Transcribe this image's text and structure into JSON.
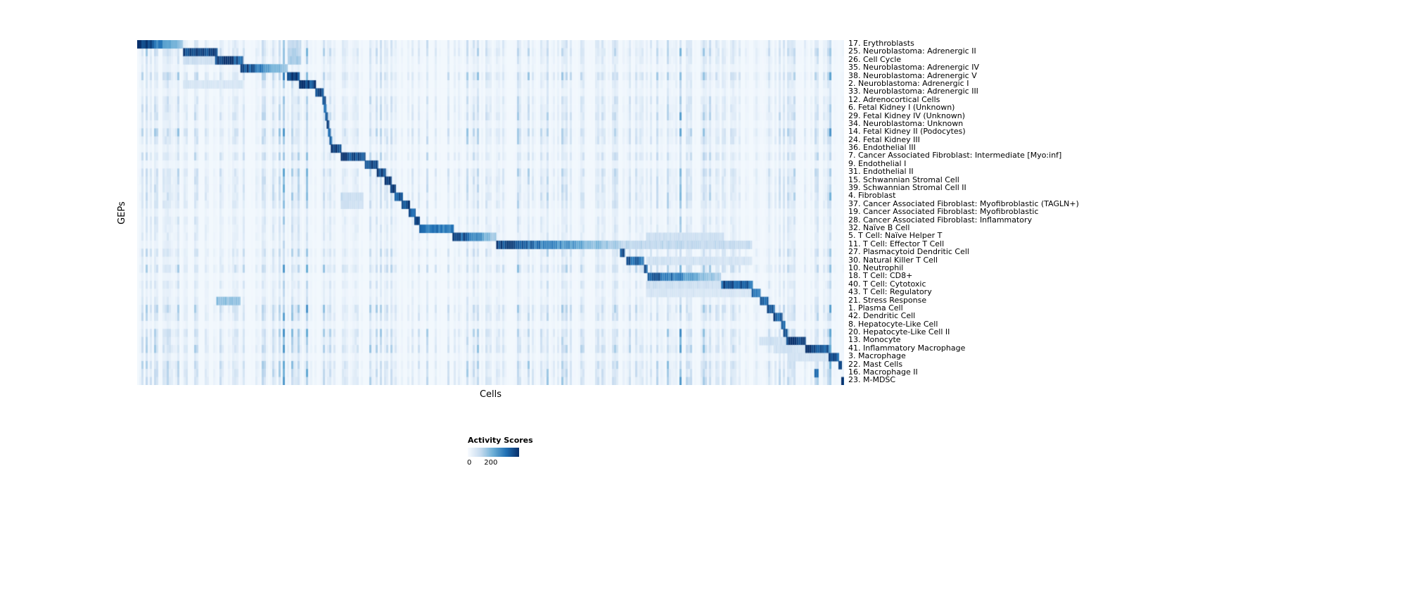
{
  "figure": {
    "background": "#ffffff"
  },
  "chart_data": {
    "type": "heatmap",
    "title": "",
    "xlabel": "Cells",
    "ylabel": "GEPs",
    "colormap": "Blues",
    "value_range": [
      0,
      200
    ],
    "colors": {
      "min": "#f7fbff",
      "max": "#08306b"
    },
    "colorbar": {
      "title": "Activity Scores",
      "ticks": [
        {
          "label": "0",
          "pos": 0.03
        },
        {
          "label": "200",
          "pos": 0.45
        }
      ]
    },
    "rows": [
      {
        "label": "17. Erythroblasts",
        "segments": [
          [
            0.0,
            0.065,
            210
          ],
          [
            0.213,
            0.232,
            55
          ]
        ]
      },
      {
        "label": "25. Neuroblastoma: Adrenergic II",
        "segments": [
          [
            0.065,
            0.114,
            200
          ],
          [
            0.213,
            0.232,
            60
          ]
        ]
      },
      {
        "label": "26. Cell Cycle",
        "segments": [
          [
            0.11,
            0.15,
            200
          ],
          [
            0.065,
            0.11,
            45
          ],
          [
            0.213,
            0.232,
            70
          ]
        ]
      },
      {
        "label": "35. Neuroblastoma: Adrenergic IV",
        "segments": [
          [
            0.146,
            0.213,
            195
          ]
        ]
      },
      {
        "label": "38. Neuroblastoma: Adrenergic V",
        "segments": [
          [
            0.212,
            0.23,
            210
          ]
        ]
      },
      {
        "label": "2. Neuroblastoma: Adrenergic I",
        "segments": [
          [
            0.229,
            0.253,
            200
          ],
          [
            0.065,
            0.15,
            35
          ]
        ]
      },
      {
        "label": "33. Neuroblastoma: Adrenergic III",
        "segments": [
          [
            0.252,
            0.264,
            200
          ]
        ]
      },
      {
        "label": "12. Adrenocortical Cells",
        "segments": [
          [
            0.262,
            0.267,
            190
          ]
        ]
      },
      {
        "label": "6. Fetal Kidney I (Unknown)",
        "segments": [
          [
            0.264,
            0.268,
            180
          ]
        ]
      },
      {
        "label": "29. Fetal Kidney IV (Unknown)",
        "segments": [
          [
            0.266,
            0.27,
            180
          ]
        ]
      },
      {
        "label": "34. Neuroblastoma: Unknown",
        "segments": [
          [
            0.268,
            0.272,
            170
          ]
        ]
      },
      {
        "label": "14. Fetal Kidney II (Podocytes)",
        "segments": [
          [
            0.27,
            0.274,
            180
          ]
        ]
      },
      {
        "label": "24. Fetal Kidney III",
        "segments": [
          [
            0.272,
            0.276,
            180
          ]
        ]
      },
      {
        "label": "36. Endothelial III",
        "segments": [
          [
            0.274,
            0.289,
            195
          ]
        ]
      },
      {
        "label": "7. Cancer Associated Fibroblast: Intermediate [Myo:inf]",
        "segments": [
          [
            0.288,
            0.323,
            200
          ]
        ]
      },
      {
        "label": "9. Endothelial I",
        "segments": [
          [
            0.322,
            0.341,
            195
          ]
        ]
      },
      {
        "label": "31. Endothelial II",
        "segments": [
          [
            0.339,
            0.352,
            190
          ]
        ]
      },
      {
        "label": "15. Schwannian Stromal Cell",
        "segments": [
          [
            0.35,
            0.36,
            190
          ]
        ]
      },
      {
        "label": "39. Schwannian Stromal Cell II",
        "segments": [
          [
            0.358,
            0.366,
            185
          ]
        ]
      },
      {
        "label": "4. Fibroblast",
        "segments": [
          [
            0.364,
            0.376,
            190
          ],
          [
            0.288,
            0.32,
            50
          ]
        ]
      },
      {
        "label": "37. Cancer Associated Fibroblast: Myofibroblastic (TAGLN+)",
        "segments": [
          [
            0.374,
            0.386,
            195
          ],
          [
            0.288,
            0.32,
            45
          ]
        ]
      },
      {
        "label": "19. Cancer Associated Fibroblast: Myofibroblastic",
        "segments": [
          [
            0.384,
            0.394,
            190
          ]
        ]
      },
      {
        "label": "28. Cancer Associated Fibroblast: Inflammatory",
        "segments": [
          [
            0.392,
            0.4,
            185
          ]
        ]
      },
      {
        "label": "32. Naïve B Cell",
        "segments": [
          [
            0.399,
            0.448,
            150
          ]
        ]
      },
      {
        "label": "5. T Cell: Naïve Helper T",
        "segments": [
          [
            0.446,
            0.508,
            200
          ],
          [
            0.72,
            0.83,
            45
          ]
        ]
      },
      {
        "label": "11. T Cell: Effector T Cell",
        "segments": [
          [
            0.508,
            0.682,
            190
          ],
          [
            0.682,
            0.87,
            55
          ]
        ]
      },
      {
        "label": "27. Plasmacytoid Dendritic Cell",
        "segments": [
          [
            0.683,
            0.69,
            185
          ]
        ]
      },
      {
        "label": "30. Natural Killer T Cell",
        "segments": [
          [
            0.692,
            0.717,
            170
          ],
          [
            0.72,
            0.87,
            40
          ]
        ]
      },
      {
        "label": "10. Neutrophil",
        "segments": [
          [
            0.717,
            0.722,
            180
          ]
        ]
      },
      {
        "label": "18. T Cell: CD8+",
        "segments": [
          [
            0.722,
            0.826,
            185
          ]
        ]
      },
      {
        "label": "40. T Cell: Cytotoxic",
        "segments": [
          [
            0.826,
            0.871,
            175
          ],
          [
            0.72,
            0.826,
            45
          ]
        ]
      },
      {
        "label": "43. T Cell: Regulatory",
        "segments": [
          [
            0.869,
            0.882,
            170
          ],
          [
            0.72,
            0.869,
            35
          ]
        ]
      },
      {
        "label": "21. Stress Response",
        "segments": [
          [
            0.881,
            0.893,
            180
          ],
          [
            0.112,
            0.146,
            85
          ]
        ]
      },
      {
        "label": "1. Plasma Cell",
        "segments": [
          [
            0.891,
            0.902,
            185
          ]
        ]
      },
      {
        "label": "42. Dendritic Cell",
        "segments": [
          [
            0.9,
            0.913,
            185
          ]
        ]
      },
      {
        "label": "8. Hepatocyte-Like Cell",
        "segments": [
          [
            0.911,
            0.917,
            180
          ]
        ]
      },
      {
        "label": "20. Hepatocyte-Like Cell II",
        "segments": [
          [
            0.914,
            0.92,
            175
          ]
        ]
      },
      {
        "label": "13. Monocyte",
        "segments": [
          [
            0.918,
            0.946,
            200
          ],
          [
            0.88,
            0.918,
            45
          ]
        ]
      },
      {
        "label": "41. Inflammatory Macrophage",
        "segments": [
          [
            0.945,
            0.979,
            195
          ],
          [
            0.9,
            0.945,
            40
          ]
        ]
      },
      {
        "label": "3. Macrophage",
        "segments": [
          [
            0.978,
            0.993,
            190
          ],
          [
            0.92,
            0.978,
            40
          ]
        ]
      },
      {
        "label": "22. Mast Cells",
        "segments": [
          [
            0.992,
            0.997,
            185
          ]
        ]
      },
      {
        "label": "16. Macrophage II",
        "segments": [
          [
            0.958,
            0.964,
            180
          ]
        ]
      },
      {
        "label": "23. M-MDSC",
        "segments": [
          [
            0.996,
            1.0,
            200
          ]
        ]
      }
    ]
  }
}
